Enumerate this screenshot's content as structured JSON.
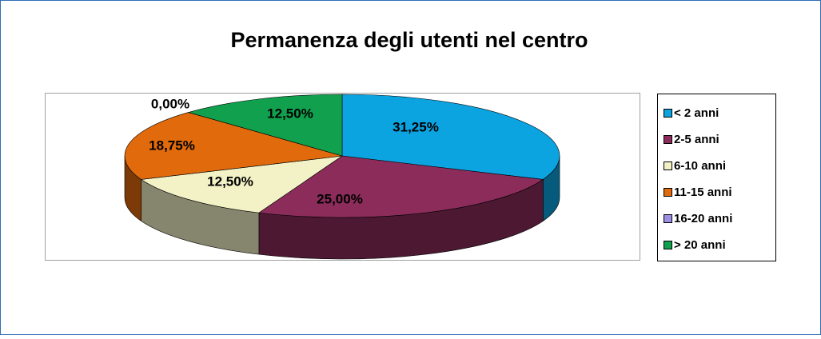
{
  "chart_data": {
    "type": "pie",
    "title": "Permanenza degli utenti nel centro",
    "categories": [
      "< 2 anni",
      "2-5 anni",
      "6-10 anni",
      "11-15 anni",
      "16-20 anni",
      "> 20 anni"
    ],
    "values": [
      31.25,
      25,
      12.5,
      18.75,
      0,
      12.5
    ],
    "value_labels": [
      "31,25%",
      "25,00%",
      "12,50%",
      "18,75%",
      "0,00%",
      "12,50%"
    ],
    "colors": [
      "#0ba3e0",
      "#8b2c5a",
      "#f3f1c6",
      "#e06a0c",
      "#9a8fe2",
      "#11a04e"
    ],
    "legend": "right"
  }
}
